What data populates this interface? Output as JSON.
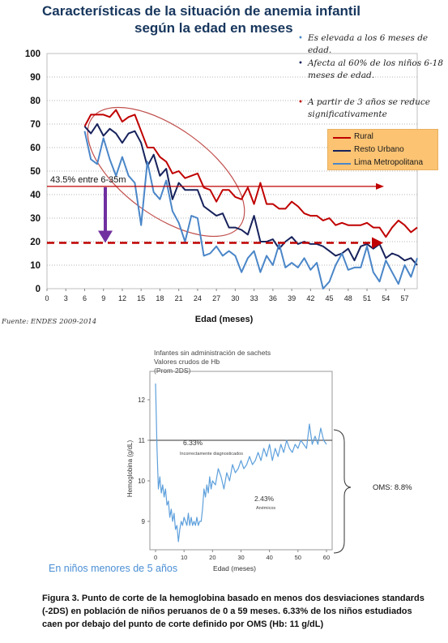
{
  "panel1": {
    "title_line1": "Características de la situación de anemia infantil",
    "title_line2": "según la edad en meses",
    "bullets": [
      {
        "symbol": "•",
        "text": "Es elevada a los 6 meses de edad."
      },
      {
        "symbol": "•",
        "text": "Afecta al 60% de los niños 6-18 meses de edad."
      },
      {
        "symbol": "•",
        "text": "A partir de 3 años se reduce significativamente"
      }
    ],
    "bullet_colors": [
      "#1f1f1f",
      "#4a86c8",
      "#17225c",
      "#c00000"
    ],
    "annotation": "43.5% entre 6-35m",
    "source": "Fuente: ENDES 2009-2014"
  },
  "chart_data": [
    {
      "type": "line",
      "xlabel": "Edad (meses)",
      "ylabel": "",
      "xlim": [
        0,
        59
      ],
      "ylim": [
        0,
        100
      ],
      "xticks": [
        0,
        3,
        6,
        9,
        12,
        15,
        18,
        21,
        24,
        27,
        30,
        33,
        36,
        39,
        42,
        45,
        48,
        51,
        54,
        57
      ],
      "xtick_labels": [
        "0",
        "3",
        "6",
        "9",
        "12",
        "15",
        "18",
        "21",
        "24",
        "27",
        "30",
        "33",
        "36",
        "39",
        "42",
        "45",
        "48",
        "51",
        "54",
        "57"
      ],
      "yticks": [
        0,
        10,
        20,
        30,
        40,
        50,
        60,
        70,
        80,
        90,
        100
      ],
      "ytick_labels": [
        "0",
        "10",
        "20",
        "30",
        "40",
        "50",
        "60",
        "70",
        "80",
        "90",
        "100"
      ],
      "grid": "horizontal dotted",
      "legend": "right, orange box",
      "x": [
        6,
        7,
        8,
        9,
        10,
        11,
        12,
        13,
        14,
        15,
        16,
        17,
        18,
        19,
        20,
        21,
        22,
        23,
        24,
        25,
        26,
        27,
        28,
        29,
        30,
        31,
        32,
        33,
        34,
        35,
        36,
        37,
        38,
        39,
        40,
        41,
        42,
        43,
        44,
        45,
        46,
        47,
        48,
        49,
        50,
        51,
        52,
        53,
        54,
        55,
        56,
        57,
        58,
        59
      ],
      "series": [
        {
          "name": "Rural",
          "color": "#c00000",
          "values": [
            69,
            74,
            74,
            74,
            73,
            76,
            71,
            73,
            74,
            67,
            60,
            60,
            56,
            54,
            49,
            50,
            47,
            48,
            49,
            43,
            42,
            37,
            42,
            42,
            39,
            38,
            43,
            36,
            45,
            36,
            36,
            34,
            34,
            37,
            35,
            32,
            31,
            31,
            29,
            30,
            27,
            28,
            27,
            27,
            27,
            28,
            26,
            26,
            22,
            26,
            29,
            27,
            24,
            26
          ]
        },
        {
          "name": "Resto Urbano",
          "color": "#17225c",
          "values": [
            69,
            66,
            70,
            65,
            68,
            66,
            62,
            66,
            67,
            62,
            52,
            57,
            48,
            51,
            38,
            45,
            42,
            42,
            42,
            35,
            33,
            31,
            32,
            26,
            26,
            25,
            23,
            31,
            20,
            20,
            21,
            17,
            20,
            22,
            19,
            20,
            19,
            19,
            18,
            16,
            14,
            15,
            17,
            12,
            18,
            19,
            17,
            19,
            13,
            15,
            14,
            12,
            13,
            10
          ]
        },
        {
          "name": "Lima Metropolitana",
          "color": "#4a86c8",
          "values": [
            67,
            55,
            53,
            64,
            55,
            48,
            56,
            48,
            45,
            27,
            54,
            41,
            38,
            46,
            33,
            28,
            20,
            31,
            30,
            14,
            15,
            18,
            14,
            16,
            14,
            7,
            13,
            16,
            7,
            14,
            10,
            19,
            9,
            11,
            9,
            13,
            8,
            11,
            0,
            3,
            10,
            15,
            8,
            9,
            9,
            18,
            7,
            3,
            12,
            7,
            2,
            10,
            5,
            13
          ]
        }
      ],
      "reference_lines": [
        {
          "value": 43.5,
          "label": "43.5% entre 6-35m",
          "color": "#c00000",
          "style": "solid"
        },
        {
          "value": 19.5,
          "label": "",
          "color": "#c00000",
          "style": "dashed"
        }
      ]
    },
    {
      "type": "line",
      "title_lines": [
        "Infantes sin administración de sachets",
        "Valores crudos de Hb",
        "(Prom-2DS)"
      ],
      "xlabel": "Edad (meses)",
      "ylabel": "Hemoglobina (g/dL)",
      "xlim": [
        -2,
        62
      ],
      "ylim": [
        8.3,
        12.7
      ],
      "xticks": [
        0,
        10,
        20,
        30,
        40,
        50,
        60
      ],
      "xtick_labels": [
        "0",
        "10",
        "20",
        "30",
        "40",
        "50",
        "60"
      ],
      "yticks": [
        9,
        10,
        11,
        12
      ],
      "ytick_labels": [
        "9",
        "10",
        "11",
        "12"
      ],
      "grid": "none",
      "cutoff": {
        "value": 11,
        "label": ""
      },
      "annotations": [
        {
          "text": "6.33%",
          "subtext": "Incorrectamente diagnosticados"
        },
        {
          "text": "2.43%",
          "subtext": "Anémicos"
        }
      ],
      "bracket_label": "OMS: 8.8%",
      "x": [
        0,
        0.5,
        1,
        1.5,
        2,
        2.5,
        3,
        3.5,
        4,
        4.5,
        5,
        5.5,
        6,
        6.5,
        7,
        7.5,
        8,
        8.5,
        9,
        9.5,
        10,
        10.5,
        11,
        11.5,
        12,
        12.5,
        13,
        13.5,
        14,
        14.5,
        15,
        15.5,
        16,
        16.5,
        17,
        17.5,
        18,
        18.5,
        19,
        19.5,
        20,
        21,
        22,
        23,
        24,
        25,
        26,
        27,
        28,
        29,
        30,
        31,
        32,
        33,
        34,
        35,
        36,
        37,
        38,
        39,
        40,
        41,
        42,
        43,
        44,
        45,
        46,
        47,
        48,
        49,
        50,
        51,
        52,
        53,
        54,
        55,
        56,
        57,
        58,
        59,
        60
      ],
      "values": [
        12.4,
        10.8,
        9.8,
        10.1,
        9.7,
        9.9,
        9.6,
        9.8,
        9.4,
        9.5,
        9.1,
        9.3,
        9.0,
        9.2,
        8.8,
        8.9,
        8.5,
        8.8,
        9.0,
        8.9,
        9.1,
        9.0,
        8.9,
        9.2,
        8.9,
        9.1,
        8.9,
        9.0,
        8.9,
        9.1,
        8.9,
        9.0,
        9.0,
        9.3,
        9.8,
        9.6,
        9.9,
        9.7,
        10.1,
        9.8,
        10.0,
        9.9,
        10.3,
        10.1,
        9.8,
        10.2,
        10.0,
        10.4,
        10.2,
        10.3,
        10.5,
        10.3,
        10.4,
        10.6,
        10.4,
        10.5,
        10.7,
        10.5,
        10.8,
        10.6,
        10.9,
        10.5,
        10.8,
        10.6,
        10.9,
        10.7,
        11.0,
        10.8,
        10.7,
        10.9,
        10.8,
        11.0,
        10.9,
        10.8,
        11.4,
        10.9,
        11.1,
        10.9,
        11.3,
        11.0,
        10.9
      ]
    }
  ],
  "panel2": {
    "blue_note": "En niños menores de 5 años",
    "caption": "Figura 3. Punto de corte de la hemoglobina basado en menos dos desviaciones standards (-2DS) en población de niños peruanos de 0 a 59 meses. 6.33% de los niños estudiados caen por debajo del punto de corte definido por OMS (Hb: 11 g/dL)"
  }
}
